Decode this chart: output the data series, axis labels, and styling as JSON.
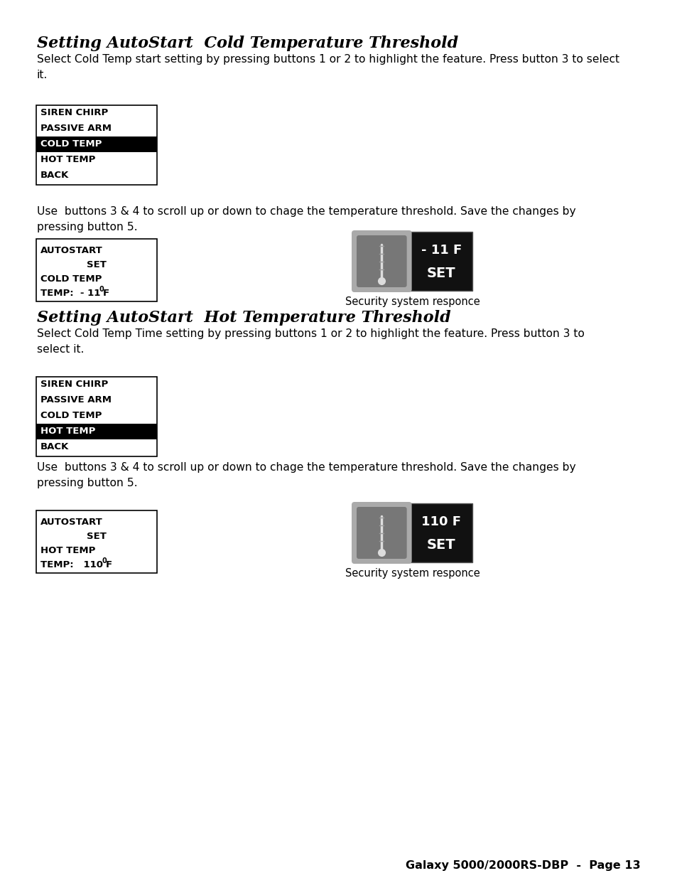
{
  "bg_color": "#ffffff",
  "title1": "Setting AutoStart  Cold Temperature Threshold",
  "body1": "Select Cold Temp start setting by pressing buttons 1 or 2 to highlight the feature. Press button 3 to select\nit.",
  "menu1_items": [
    "SIREN CHIRP",
    "PASSIVE ARM",
    "COLD TEMP",
    "HOT TEMP",
    "BACK"
  ],
  "menu1_highlight": 2,
  "body2": "Use  buttons 3 & 4 to scroll up or down to chage the temperature threshold. Save the changes by\npressing button 5.",
  "autostart_cold_line1": "AUTOSTART",
  "autostart_cold_line2": "SET",
  "autostart_cold_line3": "COLD TEMP",
  "autostart_cold_line4": "TEMP:  - 11",
  "cold_display_temp": "- 11 F",
  "cold_display_set": "SET",
  "security_responce1": "Security system responce",
  "title2": "Setting AutoStart  Hot Temperature Threshold",
  "body3": "Select Cold Temp Time setting by pressing buttons 1 or 2 to highlight the feature. Press button 3 to\nselect it.",
  "menu2_items": [
    "SIREN CHIRP",
    "PASSIVE ARM",
    "COLD TEMP",
    "HOT TEMP",
    "BACK"
  ],
  "menu2_highlight": 3,
  "body4": "Use  buttons 3 & 4 to scroll up or down to chage the temperature threshold. Save the changes by\npressing button 5.",
  "autostart_hot_line1": "AUTOSTART",
  "autostart_hot_line2": "SET",
  "autostart_hot_line3": "HOT TEMP",
  "autostart_hot_line4": "TEMP:   110",
  "hot_display_temp": "110 F",
  "hot_display_set": "SET",
  "security_responce2": "Security system responce",
  "footer": "Galaxy 5000/2000RS-DBP  -  Page 13",
  "text_color": "#000000",
  "highlight_bg": "#000000",
  "highlight_fg": "#ffffff",
  "box_border": "#000000"
}
